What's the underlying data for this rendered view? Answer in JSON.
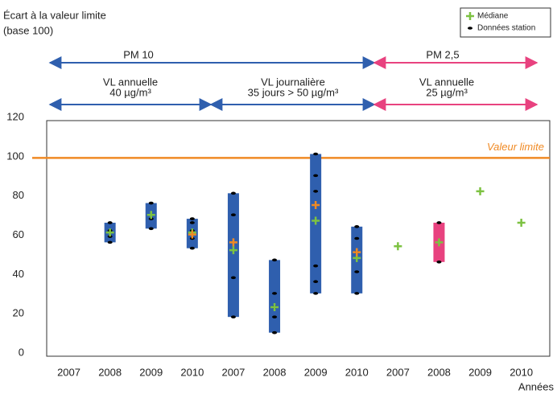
{
  "chart_data": {
    "type": "range",
    "title": [
      "Écart à la valeur limite",
      "(base 100)"
    ],
    "groups": [
      {
        "label": [
          "PM 10"
        ]
      },
      {
        "label": [
          "PM 2,5"
        ]
      }
    ],
    "subgroups": [
      {
        "label": [
          "VL annuelle",
          "40 µg/m³"
        ]
      },
      {
        "label": [
          "VL journalière",
          "35 jours > 50 µg/m³"
        ]
      },
      {
        "label": [
          "VL annuelle",
          "25 µg/m³"
        ]
      }
    ],
    "categories": [
      "2007",
      "2008",
      "2009",
      "2010",
      "2007",
      "2008",
      "2009",
      "2010",
      "2007",
      "2008",
      "2009",
      "2010"
    ],
    "x_label": "Années",
    "box_low": [
      null,
      58,
      65,
      55,
      20,
      12,
      32,
      32,
      null,
      48,
      null,
      null
    ],
    "box_high": [
      null,
      68,
      78,
      70,
      83,
      49,
      103,
      66,
      null,
      68,
      null,
      null
    ],
    "box_colors": [
      "#2f5fae",
      "#2f5fae",
      "#2f5fae",
      "#2f5fae",
      "#2f5fae",
      "#2f5fae",
      "#2f5fae",
      "#2f5fae",
      "#e8427f",
      "#e8427f",
      "#e8427f",
      "#e8427f"
    ],
    "series": [
      {
        "name": "Médiane",
        "color": "#7dc242",
        "values": [
          null,
          63,
          72,
          63,
          54,
          25,
          69,
          50,
          56,
          58,
          84,
          68
        ]
      },
      {
        "name": "Données station",
        "color": "#000000",
        "values": [
          [],
          [
            68,
            64,
            61,
            58
          ],
          [
            78,
            70,
            65
          ],
          [
            70,
            68,
            64,
            60,
            55
          ],
          [
            83,
            72,
            40,
            20
          ],
          [
            49,
            32,
            25,
            20,
            12
          ],
          [
            103,
            92,
            84,
            46,
            38,
            32
          ],
          [
            66,
            60,
            53,
            43,
            32
          ],
          [],
          [
            68,
            48
          ],
          [],
          []
        ]
      }
    ],
    "mean": {
      "color": "#f08a24",
      "values": [
        null,
        null,
        null,
        62,
        58,
        null,
        77,
        53,
        null,
        null,
        null,
        null
      ]
    },
    "limit": {
      "label": "Valeur limite",
      "value": 101,
      "color": "#f08a24"
    },
    "ylim": [
      0,
      120
    ],
    "yticks": [
      0,
      20,
      40,
      60,
      80,
      100,
      120
    ]
  }
}
